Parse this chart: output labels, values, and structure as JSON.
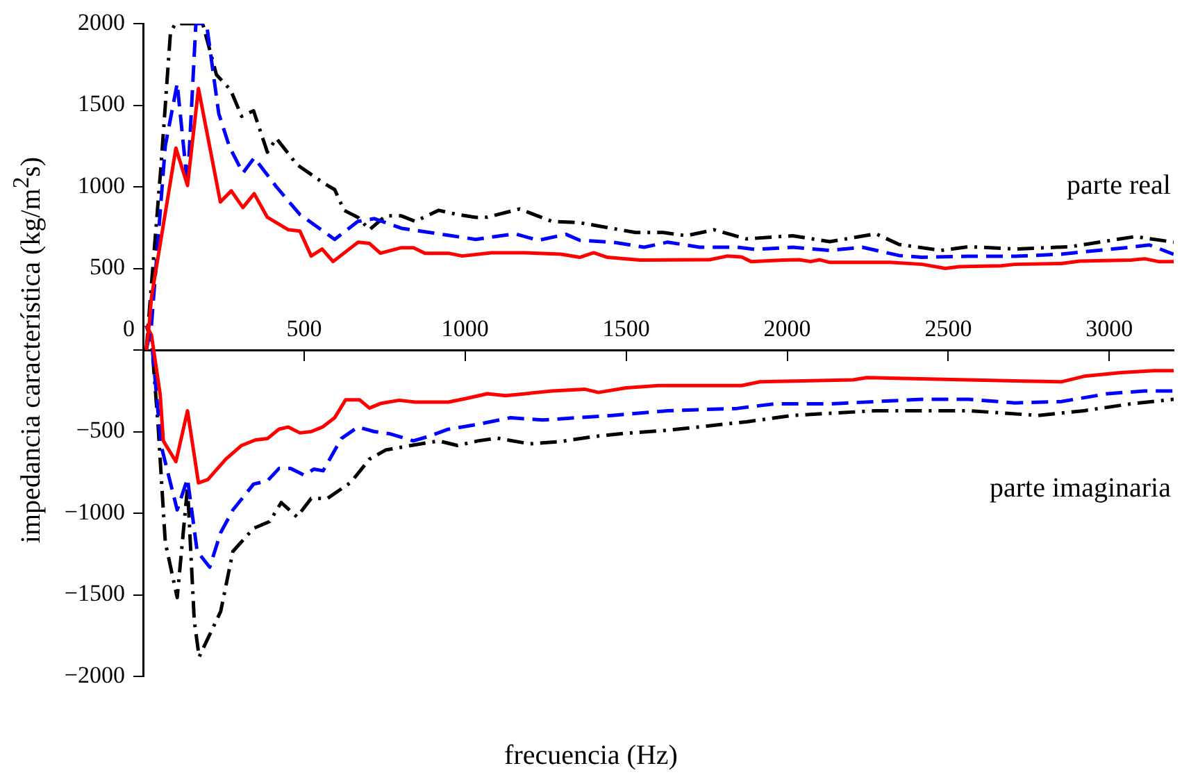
{
  "chart_data": {
    "type": "line",
    "xlabel": "frecuencia (Hz)",
    "ylabel": "impedancia característica (kg/m$^{2}$s)",
    "annotations": [
      "parte real",
      "parte imaginaria"
    ],
    "xlim": [
      0,
      3200
    ],
    "xticks": [
      0,
      500,
      1000,
      1500,
      2000,
      2500,
      3000
    ],
    "ylim": [
      -2000,
      2000
    ],
    "yticks": [
      -2000,
      -1500,
      -1000,
      -500,
      {
        "value": 0,
        "label": null
      },
      500,
      1000,
      1500,
      2000
    ],
    "grid": false,
    "legend": false,
    "marker": "none",
    "series": [
      {
        "color": "#ff0000",
        "line_style": "solid",
        "x": [
          10,
          20,
          26,
          102,
          138,
          172,
          240,
          274,
          310,
          345,
          386,
          451,
          487,
          522,
          556,
          590,
          668,
          703,
          737,
          802,
          840,
          875,
          948,
          991,
          1082,
          1184,
          1297,
          1356,
          1399,
          1442,
          1543,
          1759,
          1815,
          1858,
          1888,
          1987,
          2037,
          2073,
          2101,
          2132,
          2319,
          2419,
          2491,
          2534,
          2664,
          2707,
          2851,
          2908,
          3067,
          3110,
          3153,
          3200
        ],
        "values": [
          0,
          178,
          322,
          1237,
          1008,
          1602,
          907,
          975,
          873,
          958,
          813,
          737,
          729,
          576,
          619,
          542,
          661,
          653,
          593,
          627,
          627,
          593,
          593,
          576,
          596,
          596,
          587,
          568,
          596,
          568,
          551,
          553,
          576,
          570,
          542,
          551,
          553,
          542,
          553,
          537,
          537,
          525,
          500,
          511,
          516,
          525,
          530,
          545,
          551,
          559,
          542,
          542
        ]
      },
      {
        "color": "#0000ff",
        "line_style": "dashed",
        "x": [
          10,
          26,
          69,
          106,
          138,
          164,
          197,
          235,
          268,
          310,
          345,
          414,
          487,
          595,
          667,
          718,
          802,
          947,
          1033,
          1155,
          1227,
          1313,
          1356,
          1457,
          1556,
          1629,
          1728,
          1845,
          1901,
          2017,
          2132,
          2233,
          2347,
          2419,
          2563,
          2707,
          2851,
          2922,
          3067,
          3124,
          3200
        ],
        "values": [
          0,
          150,
          1250,
          1633,
          1008,
          2000,
          2000,
          1449,
          1246,
          1085,
          1178,
          1000,
          830,
          678,
          788,
          805,
          746,
          703,
          678,
          712,
          672,
          709,
          672,
          661,
          630,
          661,
          630,
          630,
          616,
          630,
          610,
          630,
          579,
          568,
          574,
          574,
          587,
          602,
          630,
          644,
          587
        ]
      },
      {
        "color": "#000000",
        "line_style": "dashdot",
        "x": [
          10,
          24,
          56,
          85,
          100,
          185,
          228,
          272,
          306,
          343,
          386,
          414,
          478,
          559,
          595,
          624,
          667,
          703,
          753,
          802,
          845,
          918,
          976,
          1033,
          1069,
          1169,
          1270,
          1356,
          1529,
          1615,
          1687,
          1773,
          1873,
          2017,
          2132,
          2276,
          2347,
          2477,
          2563,
          2707,
          2879,
          3081,
          3200
        ],
        "values": [
          0,
          350,
          1136,
          1943,
          2000,
          2000,
          1686,
          1593,
          1432,
          1466,
          1212,
          1297,
          1136,
          1025,
          983,
          856,
          813,
          737,
          822,
          822,
          788,
          856,
          830,
          813,
          814,
          864,
          788,
          780,
          720,
          720,
          700,
          737,
          681,
          700,
          664,
          712,
          647,
          610,
          633,
          619,
          633,
          695,
          661
        ]
      },
      {
        "color": "#ff0000",
        "line_style": "solid",
        "x": [
          10,
          26,
          53,
          63,
          102,
          138,
          172,
          201,
          257,
          306,
          349,
          386,
          422,
          451,
          487,
          522,
          557,
          595,
          629,
          672,
          703,
          737,
          795,
          845,
          948,
          1004,
          1069,
          1126,
          1270,
          1371,
          1414,
          1500,
          1600,
          1858,
          1916,
          2204,
          2247,
          2707,
          2851,
          2922,
          3038,
          3139,
          3200
        ],
        "values": [
          150,
          93,
          -271,
          -557,
          -684,
          -373,
          -814,
          -794,
          -669,
          -585,
          -551,
          -543,
          -485,
          -472,
          -508,
          -500,
          -472,
          -415,
          -305,
          -305,
          -356,
          -328,
          -308,
          -319,
          -319,
          -297,
          -268,
          -280,
          -251,
          -240,
          -260,
          -232,
          -218,
          -218,
          -195,
          -183,
          -169,
          -189,
          -195,
          -161,
          -138,
          -127,
          -127
        ]
      },
      {
        "color": "#0000ff",
        "line_style": "dashed",
        "x": [
          10,
          26,
          56,
          106,
          138,
          168,
          207,
          241,
          279,
          343,
          386,
          422,
          458,
          501,
          530,
          559,
          616,
          667,
          718,
          768,
          839,
          889,
          947,
          1033,
          1141,
          1241,
          1457,
          1629,
          1845,
          1959,
          2132,
          2419,
          2563,
          2707,
          2851,
          2994,
          3110,
          3200
        ],
        "values": [
          150,
          68,
          -585,
          -980,
          -788,
          -1234,
          -1331,
          -1119,
          -980,
          -822,
          -802,
          -726,
          -726,
          -768,
          -730,
          -740,
          -542,
          -472,
          -500,
          -514,
          -557,
          -528,
          -486,
          -458,
          -415,
          -429,
          -401,
          -372,
          -358,
          -330,
          -330,
          -302,
          -302,
          -324,
          -316,
          -268,
          -251,
          -251
        ]
      },
      {
        "color": "#000000",
        "line_style": "dashdot",
        "x": [
          10,
          26,
          47,
          69,
          106,
          138,
          159,
          174,
          241,
          279,
          343,
          393,
          429,
          478,
          522,
          572,
          645,
          703,
          753,
          832,
          918,
          976,
          1040,
          1100,
          1200,
          1300,
          1400,
          1500,
          1629,
          1873,
          2017,
          2276,
          2563,
          2779,
          2922,
          3067,
          3200
        ],
        "values": [
          150,
          68,
          -472,
          -1178,
          -1517,
          -839,
          -1658,
          -1881,
          -1602,
          -1234,
          -1093,
          -1051,
          -935,
          -1023,
          -910,
          -910,
          -811,
          -669,
          -613,
          -585,
          -557,
          -585,
          -557,
          -540,
          -575,
          -560,
          -530,
          -510,
          -492,
          -440,
          -401,
          -372,
          -372,
          -401,
          -372,
          -330,
          -302
        ]
      }
    ]
  }
}
